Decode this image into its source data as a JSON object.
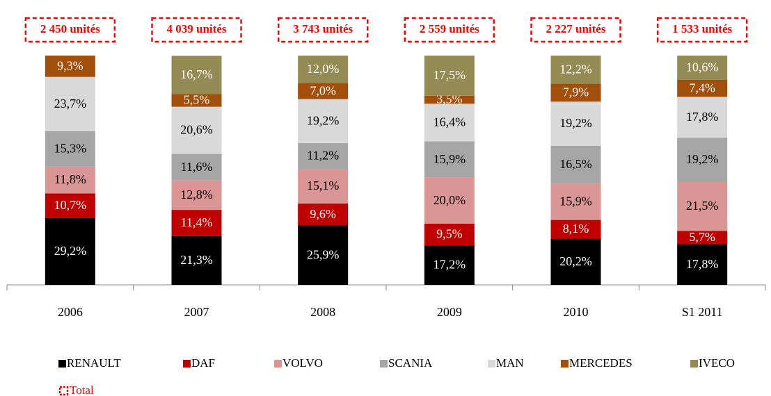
{
  "chart_data": {
    "type": "stacked_bar",
    "categories": [
      "2006",
      "2007",
      "2008",
      "2009",
      "2010",
      "S1 2011"
    ],
    "ylim": [
      0,
      100
    ],
    "series": [
      {
        "name": "RENAULT",
        "color": "#000000",
        "values": [
          29.2,
          21.3,
          25.9,
          17.2,
          20.2,
          17.8
        ],
        "value_labels": [
          "29,2%",
          "21,3%",
          "25,9%",
          "17,2%",
          "20,2%",
          "17,8%"
        ]
      },
      {
        "name": "DAF",
        "color": "#c00000",
        "values": [
          10.7,
          11.4,
          9.6,
          9.5,
          8.1,
          5.7
        ],
        "value_labels": [
          "10,7%",
          "11,4%",
          "9,6%",
          "9,5%",
          "8,1%",
          "5,7%"
        ]
      },
      {
        "name": "VOLVO",
        "color": "#d99694",
        "values": [
          11.8,
          12.8,
          15.1,
          20.0,
          15.9,
          21.5
        ],
        "value_labels": [
          "11,8%",
          "12,8%",
          "15,1%",
          "20,0%",
          "15,9%",
          "21,5%"
        ]
      },
      {
        "name": "SCANIA",
        "color": "#a6a6a6",
        "values": [
          15.3,
          11.6,
          11.2,
          15.9,
          16.5,
          19.2
        ],
        "value_labels": [
          "15,3%",
          "11,6%",
          "11,2%",
          "15,9%",
          "16,5%",
          "19,2%"
        ]
      },
      {
        "name": "MAN",
        "color": "#d9d9d9",
        "values": [
          23.7,
          20.6,
          19.2,
          16.4,
          19.2,
          17.8
        ],
        "value_labels": [
          "23,7%",
          "20,6%",
          "19,2%",
          "16,4%",
          "19,2%",
          "17,8%"
        ]
      },
      {
        "name": "MERCEDES",
        "color": "#a24f0b",
        "values": [
          9.3,
          5.5,
          7.0,
          3.5,
          7.9,
          7.4
        ],
        "value_labels": [
          "9,3%",
          "5,5%",
          "7,0%",
          "3,5%",
          "7,9%",
          "7,4%"
        ]
      },
      {
        "name": "IVECO",
        "color": "#948a54",
        "values": [
          null,
          16.7,
          12.0,
          17.5,
          12.2,
          10.6
        ],
        "value_labels": [
          null,
          "16,7%",
          "12,0%",
          "17,5%",
          "12,2%",
          "10,6%"
        ]
      }
    ],
    "totals": {
      "name": "Total",
      "color": "#ff0000",
      "values": [
        2450,
        4039,
        3743,
        2559,
        2227,
        1533
      ],
      "value_labels": [
        "2 450 unités",
        "4 039 unités",
        "3 743 unités",
        "2 559 unités",
        "2 227 unités",
        "1 533 unités"
      ]
    }
  }
}
